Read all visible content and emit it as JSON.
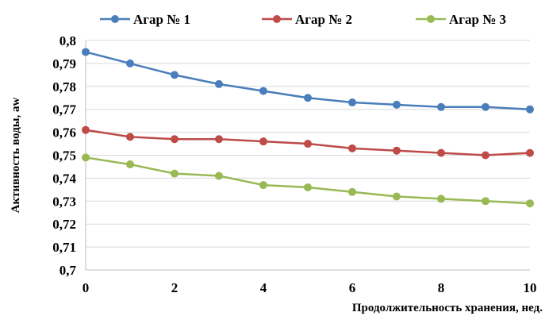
{
  "chart_data": {
    "type": "line",
    "xlabel": "Продолжительность хранения, нед.",
    "ylabel": "Активность воды, aw",
    "xlim": [
      0,
      10
    ],
    "ylim": [
      0.7,
      0.8
    ],
    "xticks": [
      0,
      2,
      4,
      6,
      8,
      10
    ],
    "xtick_labels": [
      "0",
      "2",
      "4",
      "6",
      "8",
      "10"
    ],
    "yticks": [
      0.7,
      0.71,
      0.72,
      0.73,
      0.74,
      0.75,
      0.76,
      0.77,
      0.78,
      0.79,
      0.8
    ],
    "ytick_labels": [
      "0,7",
      "0,71",
      "0,72",
      "0,73",
      "0,74",
      "0,75",
      "0,76",
      "0,77",
      "0,78",
      "0,79",
      "0,8"
    ],
    "grid": true,
    "legend_position": "top",
    "x": [
      0,
      1,
      2,
      3,
      4,
      5,
      6,
      7,
      8,
      9,
      10
    ],
    "series": [
      {
        "name": "Агар № 1",
        "color": "#4a7ebb",
        "values": [
          0.795,
          0.79,
          0.785,
          0.781,
          0.778,
          0.775,
          0.773,
          0.772,
          0.771,
          0.771,
          0.77
        ]
      },
      {
        "name": "Агар № 2",
        "color": "#be4b48",
        "values": [
          0.761,
          0.758,
          0.757,
          0.757,
          0.756,
          0.755,
          0.753,
          0.752,
          0.751,
          0.75,
          0.751
        ]
      },
      {
        "name": "Агар № 3",
        "color": "#98b954",
        "values": [
          0.749,
          0.746,
          0.742,
          0.741,
          0.737,
          0.736,
          0.734,
          0.732,
          0.731,
          0.73,
          0.729
        ]
      }
    ]
  }
}
